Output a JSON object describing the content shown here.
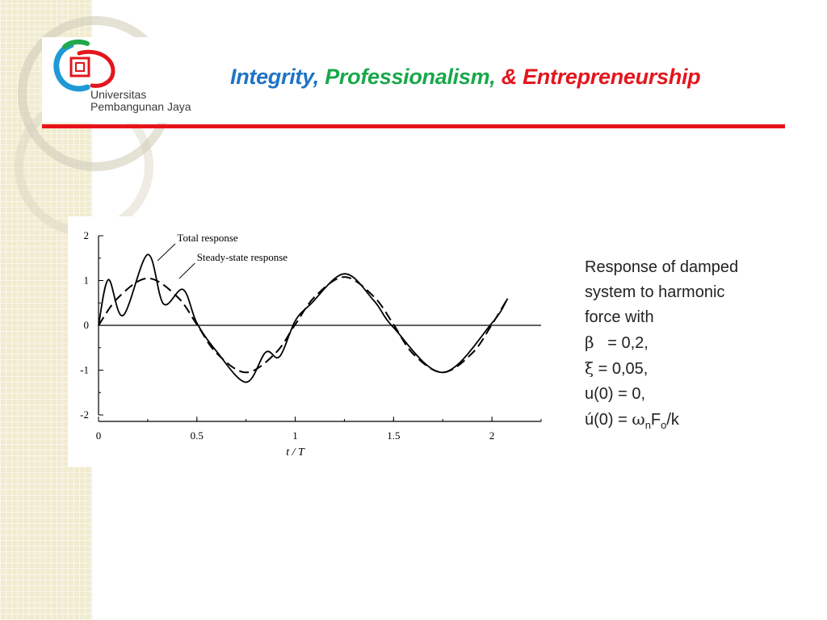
{
  "header": {
    "logo_line1": "Universitas",
    "logo_line2": "Pembangunan Jaya",
    "tagline_part1": "Integrity,",
    "tagline_part2": "Professionalism,",
    "tagline_part3": "& Entrepreneurship"
  },
  "colors": {
    "accent_red": "#e8131a",
    "tagline_blue": "#1f73c4",
    "tagline_green": "#18a84a",
    "tagline_red": "#e3161d",
    "side_strip": "#f1ebd0"
  },
  "caption": {
    "line1": "Response of damped",
    "line2": "system to harmonic",
    "line3": "force with",
    "beta_symbol": "β",
    "beta_value": "= 0,2,",
    "xi_symbol": "ξ",
    "xi_value": "= 0,05,",
    "u0": "u(0) = 0,",
    "udot0_prefix": "ú(0) =",
    "omega_symbol": "ω",
    "omega_sub": "n",
    "force_symbol": "F",
    "force_sub": "o",
    "suffix": "/k"
  },
  "chart_data": {
    "type": "line",
    "xlabel": "t / T",
    "ylabel": "",
    "xlim": [
      0,
      2.25
    ],
    "ylim": [
      -2,
      2
    ],
    "xticks": [
      "0",
      "0.5",
      "1",
      "1.5",
      "2"
    ],
    "yticks": [
      "2",
      "1",
      "0",
      "-1",
      "-2"
    ],
    "annotations": [
      "Total response",
      "Steady-state response"
    ],
    "zero_line": true,
    "series": [
      {
        "name": "Total response",
        "style": "solid",
        "x": [
          0,
          0.05,
          0.125,
          0.25,
          0.33,
          0.43,
          0.5,
          0.6,
          0.75,
          0.85,
          0.92,
          1.0,
          1.08,
          1.25,
          1.4,
          1.5,
          1.75,
          2.0,
          2.08
        ],
        "y": [
          0,
          1.02,
          0.22,
          1.58,
          0.48,
          0.8,
          0.05,
          -0.58,
          -1.27,
          -0.6,
          -0.7,
          0.1,
          0.48,
          1.15,
          0.55,
          -0.05,
          -1.05,
          0.05,
          0.6
        ]
      },
      {
        "name": "Steady-state response",
        "style": "dashed",
        "x": [
          0,
          0.1,
          0.25,
          0.4,
          0.5,
          0.6,
          0.75,
          0.9,
          1.0,
          1.1,
          1.25,
          1.4,
          1.5,
          1.6,
          1.75,
          1.9,
          2.0,
          2.08
        ],
        "y": [
          0,
          0.62,
          1.05,
          0.64,
          0.02,
          -0.62,
          -1.05,
          -0.62,
          0.02,
          0.64,
          1.08,
          0.64,
          0.02,
          -0.64,
          -1.05,
          -0.62,
          0.02,
          0.6
        ]
      }
    ]
  }
}
